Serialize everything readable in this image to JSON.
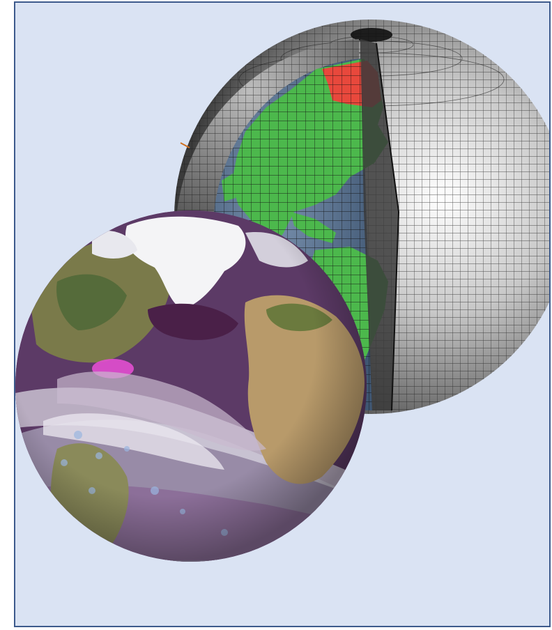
{
  "figure": {
    "background_color": "#dae3f3",
    "border_color": "#3d5a8c",
    "grid_globe": {
      "shell_color": "#9a9a9a",
      "grid_line_color": "#1a1a1a",
      "ocean_color": "#5e7794",
      "land_color": "#4cb84c",
      "ice_color": "#e8483c"
    },
    "earth_globe": {
      "ocean_color": "#6b3a6e",
      "land_color": "#b89a6a",
      "vegetation_color": "#6b7a3e",
      "cloud_color": "#f4f4f6",
      "storm_color": "#e24fd0"
    }
  }
}
